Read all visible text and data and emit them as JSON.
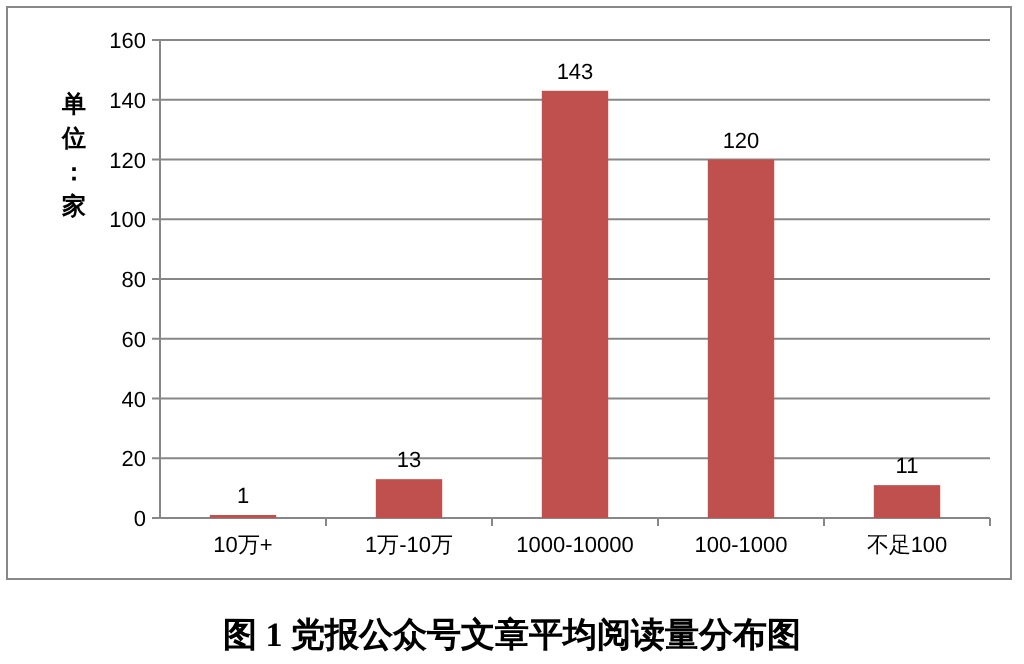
{
  "chart_data": {
    "type": "bar",
    "title": "图 1 党报公众号文章平均阅读量分布图",
    "ylabel": "单位：家",
    "categories": [
      "10万+",
      "1万-10万",
      "1000-10000",
      "100-1000",
      "不足100"
    ],
    "values": [
      1,
      13,
      143,
      120,
      11
    ],
    "color": "#c0504d",
    "ylim": [
      0,
      160
    ],
    "yticks": [
      0,
      20,
      40,
      60,
      80,
      100,
      120,
      140,
      160
    ],
    "grid": "y",
    "data_labels": true
  }
}
